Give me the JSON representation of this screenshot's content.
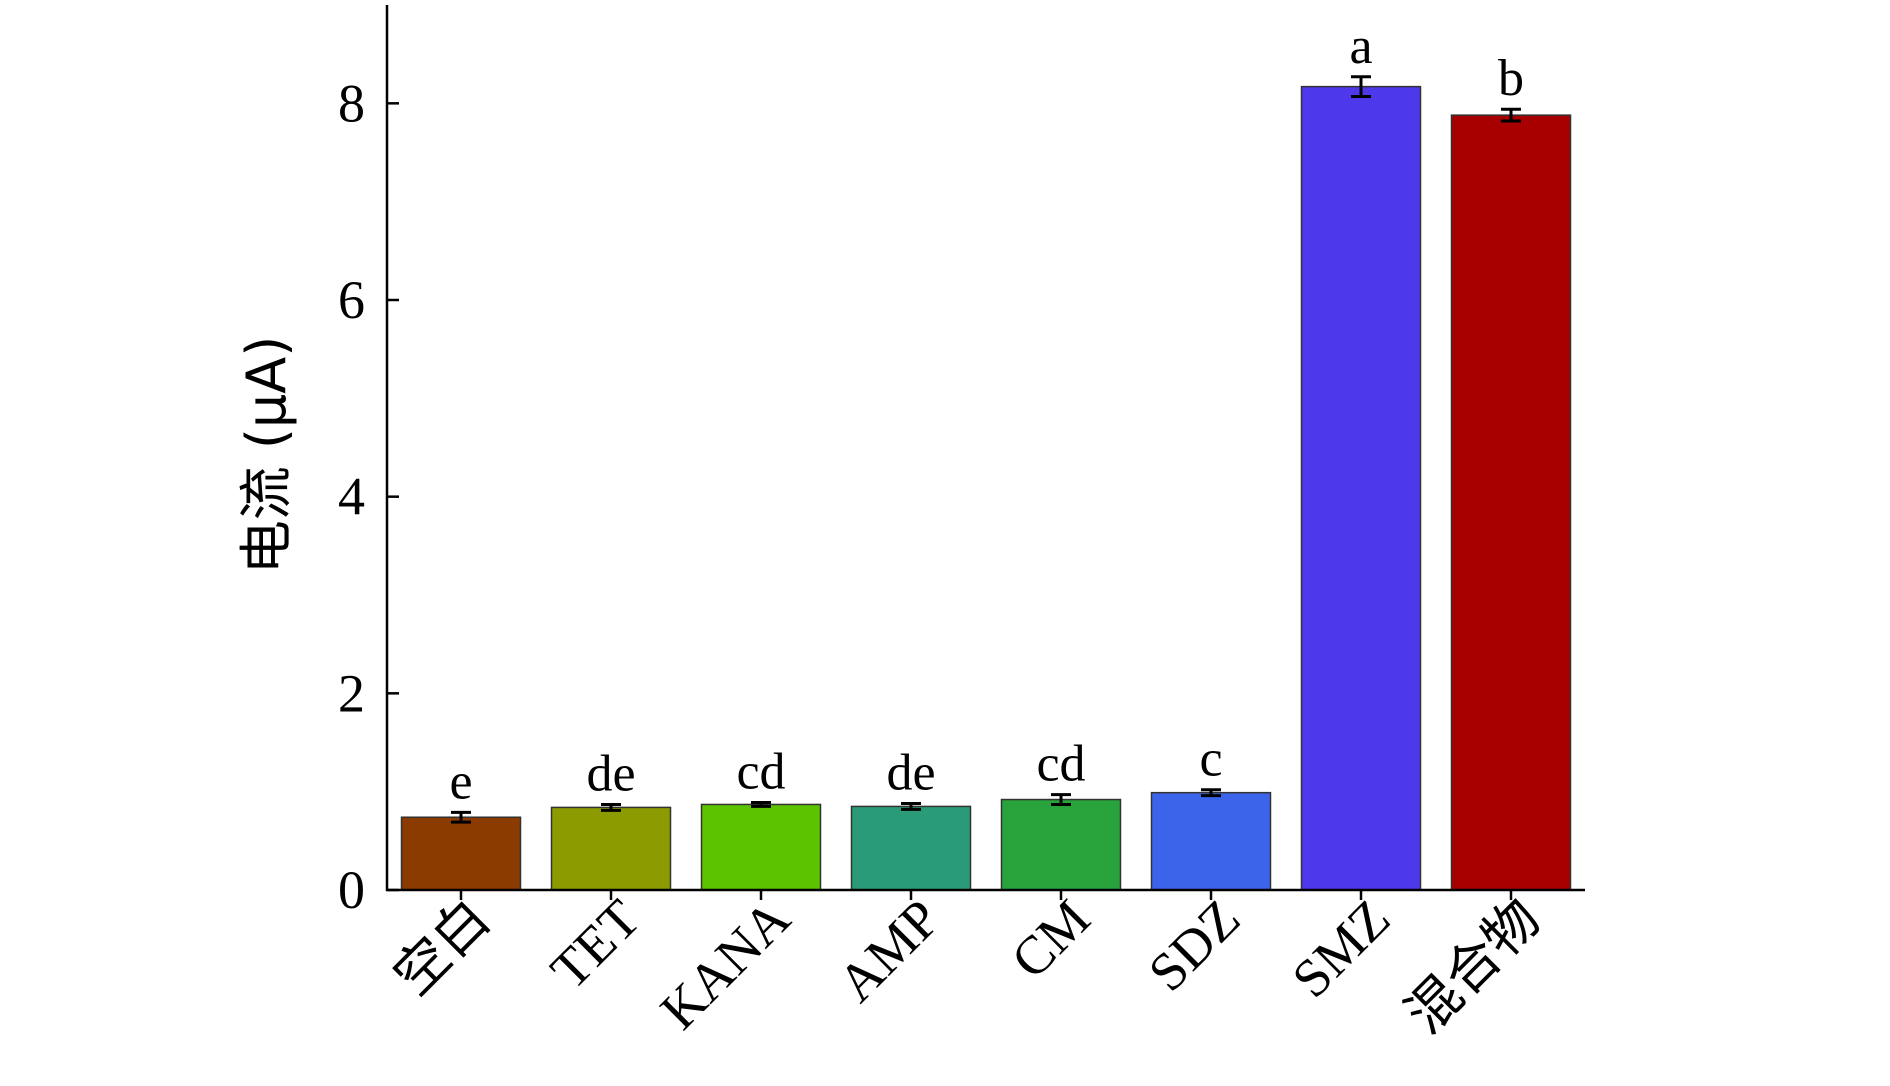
{
  "chart_data": {
    "type": "bar",
    "title": "",
    "xlabel": "",
    "ylabel": "电流 (μA)",
    "ylim": [
      0,
      9
    ],
    "yticks": [
      0,
      2,
      4,
      6,
      8
    ],
    "grid": false,
    "legend": "none",
    "categories": [
      "空白",
      "TET",
      "KANA",
      "AMP",
      "CM",
      "SDZ",
      "SMZ",
      "混合物"
    ],
    "values": [
      0.74,
      0.84,
      0.87,
      0.85,
      0.92,
      0.99,
      8.17,
      7.88
    ],
    "errors": [
      0.05,
      0.03,
      0.02,
      0.03,
      0.05,
      0.03,
      0.1,
      0.06
    ],
    "significance": [
      "e",
      "de",
      "cd",
      "de",
      "cd",
      "c",
      "a",
      "b"
    ],
    "colors": [
      "#8B3A00",
      "#8C9C00",
      "#5BC300",
      "#2A9B78",
      "#28A33C",
      "#3C64EA",
      "#4E38EC",
      "#A80000"
    ]
  }
}
